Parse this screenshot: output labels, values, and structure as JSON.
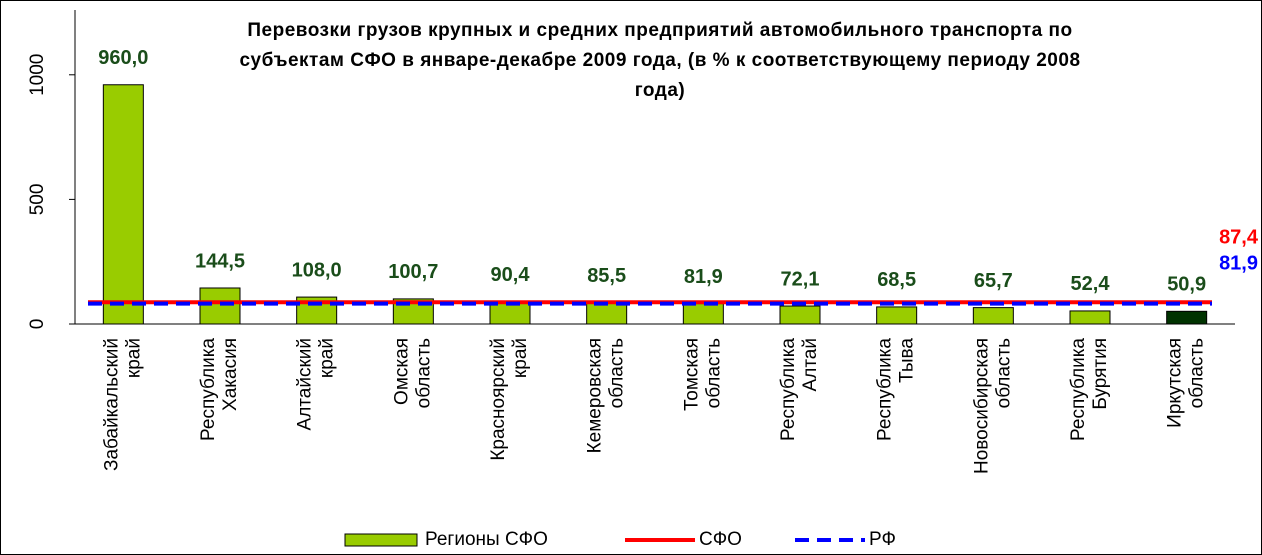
{
  "chart_data": {
    "type": "bar",
    "title": "Перевозки грузов крупных и средних предприятий автомобильного транспорта по субъектам СФО в январе-декабре 2009 года, (в % к соответствующему периоду 2008 года)",
    "categories": [
      "Забайкальский край",
      "Республика Хакасия",
      "Алтайский край",
      "Омская область",
      "Красноярский край",
      "Кемеровская область",
      "Томская область",
      "Республика Алтай",
      "Республика Тыва",
      "Новосибирская область",
      "Республика Бурятия",
      "Иркутская область"
    ],
    "series": [
      {
        "name": "Регионы СФО",
        "color": "#99cc00",
        "colors": [
          "#99cc00",
          "#99cc00",
          "#99cc00",
          "#99cc00",
          "#99cc00",
          "#99cc00",
          "#99cc00",
          "#99cc00",
          "#99cc00",
          "#99cc00",
          "#99cc00",
          "#003300"
        ],
        "values": [
          960.0,
          144.5,
          108.0,
          100.7,
          90.4,
          85.5,
          81.9,
          72.1,
          68.5,
          65.7,
          52.4,
          50.9
        ],
        "value_labels": [
          "960,0",
          "144,5",
          "108,0",
          "100,7",
          "90,4",
          "85,5",
          "81,9",
          "72,1",
          "68,5",
          "65,7",
          "52,4",
          "50,9"
        ]
      }
    ],
    "reference_lines": [
      {
        "name": "СФО",
        "color": "#ff0000",
        "dashed": false,
        "value": 87.4,
        "value_label": "87,4"
      },
      {
        "name": "РФ",
        "color": "#0000ff",
        "dashed": true,
        "value": 81.9,
        "value_label": "81,9"
      }
    ],
    "ylim": [
      0,
      1260
    ],
    "yticks": [
      0,
      500,
      1000
    ],
    "legend": "bottom"
  }
}
